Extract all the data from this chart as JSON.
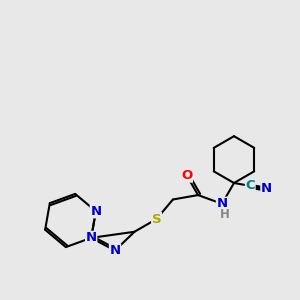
{
  "background_color": "#e8e8e8",
  "bond_color": "#000000",
  "bond_width": 1.5,
  "atom_colors": {
    "N": "#0000cc",
    "O": "#ff0000",
    "S": "#aaaa00",
    "C_cyan": "#008080",
    "H": "#888888"
  },
  "xlim": [
    0,
    10
  ],
  "ylim": [
    0,
    10
  ],
  "figsize": [
    3.0,
    3.0
  ],
  "dpi": 100
}
